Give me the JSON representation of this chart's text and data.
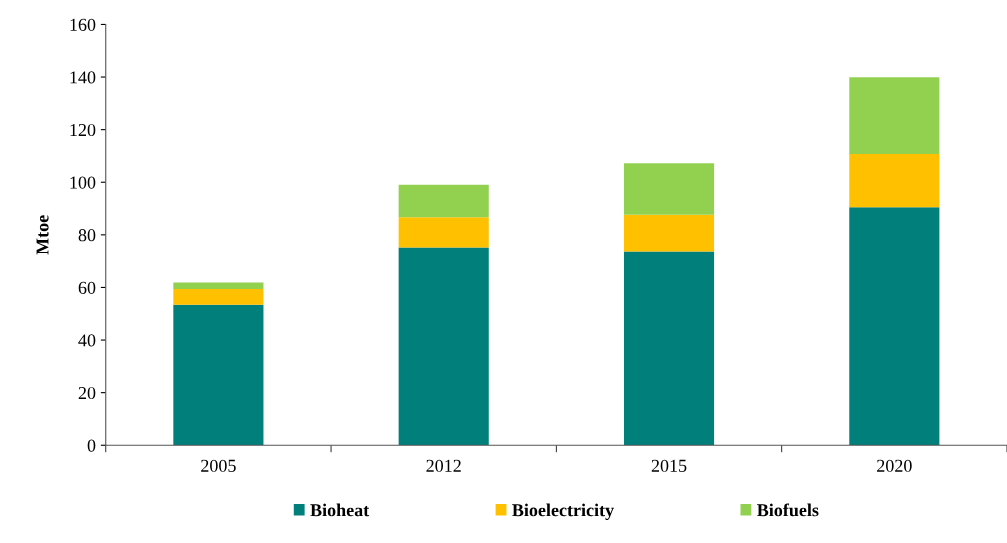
{
  "chart_data": {
    "type": "bar",
    "stacked": true,
    "ylabel": "Mtoe",
    "categories": [
      "2005",
      "2012",
      "2015",
      "2020"
    ],
    "series": [
      {
        "name": "Bioheat",
        "color": "#007f7b",
        "values": [
          53.4,
          75.2,
          73.7,
          90.5
        ]
      },
      {
        "name": "Bioelectricity",
        "color": "#ffc000",
        "values": [
          6.0,
          11.5,
          13.9,
          20.2
        ]
      },
      {
        "name": "Biofuels",
        "color": "#92d050",
        "values": [
          2.5,
          12.3,
          19.6,
          29.2
        ]
      }
    ],
    "ylim": [
      0,
      160
    ],
    "yticks": [
      0,
      20,
      40,
      60,
      80,
      100,
      120,
      140,
      160
    ],
    "grid": false,
    "legend": "bottom"
  }
}
